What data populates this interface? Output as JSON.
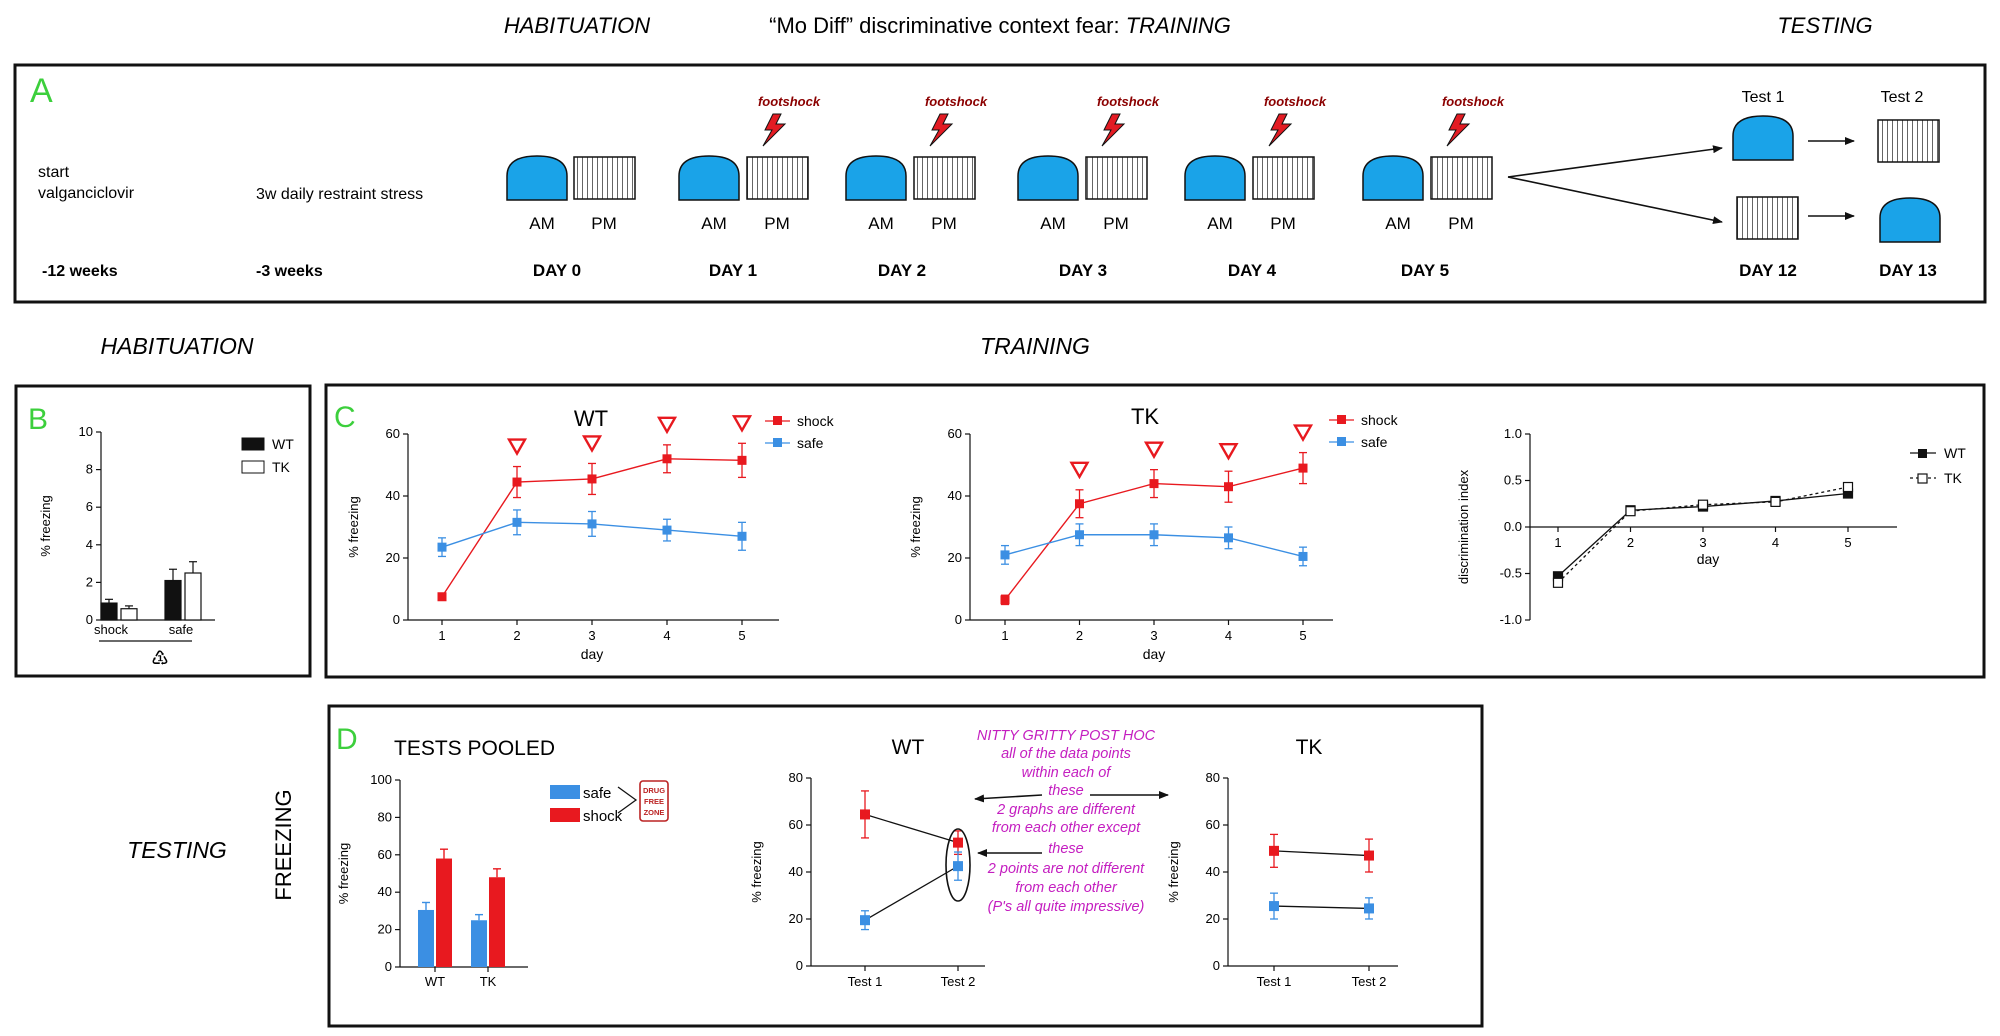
{
  "header": {
    "habituation": "HABITUATION",
    "training_prefix": "“Mo Diff” discriminative context fear: ",
    "training_word": "TRAINING",
    "testing": "TESTING"
  },
  "panel_a": {
    "letter": "A",
    "start_line1": "start",
    "start_line2": "valganciclovir",
    "stress": "3w daily restraint stress",
    "time_start": "-12 weeks",
    "time_stress": "-3 weeks",
    "footshock": "footshock",
    "am": "AM",
    "pm": "PM",
    "days": [
      "DAY 0",
      "DAY 1",
      "DAY 2",
      "DAY 3",
      "DAY 4",
      "DAY 5",
      "DAY 12",
      "DAY 13"
    ],
    "test1": "Test 1",
    "test2": "Test 2"
  },
  "section_labels": {
    "habituation": "HABITUATION",
    "training": "TRAINING",
    "testing": "TESTING",
    "freezing": "FREEZING"
  },
  "colors": {
    "shock": "#e8191f",
    "safe": "#3b8fe3",
    "context_blue": "#1aa3e8",
    "panel_letter": "#3ccf3c",
    "annotation": "#c41ec0",
    "bolt": "#e31b23",
    "footshock_text": "#8b0000"
  },
  "icons": {
    "bolt": "lightning-bolt-icon",
    "recycle": "recycle-icon",
    "stamp": "drug-free-zone-stamp-icon"
  },
  "panel_b": {
    "letter": "B",
    "ylabel": "% freezing",
    "legend": [
      "WT",
      "TK"
    ],
    "recycle_glyph": "♳",
    "chart_data": {
      "type": "bar",
      "categories": [
        "shock",
        "safe"
      ],
      "series": [
        {
          "name": "WT",
          "values": [
            0.9,
            2.1
          ],
          "errors": [
            0.2,
            0.6
          ]
        },
        {
          "name": "TK",
          "values": [
            0.6,
            2.5
          ],
          "errors": [
            0.15,
            0.6
          ]
        }
      ],
      "ylim": [
        0,
        10
      ],
      "yticks": [
        "0",
        "2",
        "4",
        "6",
        "8",
        "10"
      ],
      "ylabel": "% freezing"
    }
  },
  "panel_c": {
    "letter": "C",
    "wt": {
      "title": "WT",
      "legend": [
        "shock",
        "safe"
      ],
      "chart_data": {
        "type": "line",
        "x": [
          1,
          2,
          3,
          4,
          5
        ],
        "series": [
          {
            "name": "shock",
            "values": [
              7.5,
              44.5,
              45.5,
              52,
              51.5
            ],
            "errors": [
              1,
              5,
              5,
              4.5,
              5.5
            ]
          },
          {
            "name": "safe",
            "values": [
              23.5,
              31.5,
              31,
              29,
              27
            ],
            "errors": [
              3,
              4,
              4,
              3.5,
              4.5
            ]
          }
        ],
        "markers_x": [
          2,
          3,
          4,
          5
        ],
        "ylim": [
          0,
          60
        ],
        "yticks": [
          "0",
          "20",
          "40",
          "60"
        ],
        "xticks": [
          "1",
          "2",
          "3",
          "4",
          "5"
        ],
        "xlabel": "day",
        "ylabel": "% freezing"
      }
    },
    "tk": {
      "title": "TK",
      "legend": [
        "shock",
        "safe"
      ],
      "chart_data": {
        "type": "line",
        "x": [
          1,
          2,
          3,
          4,
          5
        ],
        "series": [
          {
            "name": "shock",
            "values": [
              6.5,
              37.5,
              44,
              43,
              49
            ],
            "errors": [
              1.5,
              4.5,
              4.5,
              5,
              5
            ]
          },
          {
            "name": "safe",
            "values": [
              21,
              27.5,
              27.5,
              26.5,
              20.5
            ],
            "errors": [
              3,
              3.5,
              3.5,
              3.5,
              3
            ]
          }
        ],
        "markers_x": [
          2,
          3,
          4,
          5
        ],
        "ylim": [
          0,
          60
        ],
        "yticks": [
          "0",
          "20",
          "40",
          "60"
        ],
        "xticks": [
          "1",
          "2",
          "3",
          "4",
          "5"
        ],
        "xlabel": "day",
        "ylabel": "% freezing"
      }
    },
    "di": {
      "legend": [
        "WT",
        "TK"
      ],
      "chart_data": {
        "type": "line",
        "x": [
          1,
          2,
          3,
          4,
          5
        ],
        "series": [
          {
            "name": "WT",
            "values": [
              -0.53,
              0.18,
              0.22,
              0.28,
              0.36
            ]
          },
          {
            "name": "TK",
            "values": [
              -0.6,
              0.17,
              0.24,
              0.27,
              0.43
            ]
          }
        ],
        "ylim": [
          -1.0,
          1.0
        ],
        "yticks": [
          "1.0",
          "0.5",
          "0.0",
          "-0.5",
          "-1.0"
        ],
        "xticks": [
          "1",
          "2",
          "3",
          "4",
          "5"
        ],
        "xlabel": "day",
        "ylabel": "discrimination index"
      }
    }
  },
  "panel_d": {
    "letter": "D",
    "pooled_title": "TESTS POOLED",
    "legend": [
      "safe",
      "shock"
    ],
    "stamp_lines": [
      "DRUG",
      "FREE",
      "ZONE"
    ],
    "annotation_lines": [
      "NITTY GRITTY POST HOC",
      "all of the data points",
      "within each of",
      "these",
      "2 graphs are different",
      "from each other except",
      "these",
      "2 points are not different",
      "from each other",
      "(P's all quite impressive)"
    ],
    "pooled": {
      "chart_data": {
        "type": "bar",
        "categories": [
          "WT",
          "TK"
        ],
        "series": [
          {
            "name": "safe",
            "values": [
              30.5,
              25
            ],
            "errors": [
              4,
              3
            ]
          },
          {
            "name": "shock",
            "values": [
              58,
              48
            ],
            "errors": [
              5,
              4.5
            ]
          }
        ],
        "ylim": [
          0,
          100
        ],
        "yticks": [
          "0",
          "20",
          "40",
          "60",
          "80",
          "100"
        ],
        "ylabel": "% freezing"
      }
    },
    "wt": {
      "title": "WT",
      "chart_data": {
        "type": "line",
        "categories": [
          "Test 1",
          "Test 2"
        ],
        "series": [
          {
            "name": "shock",
            "values": [
              64.5,
              52.5
            ],
            "errors": [
              10,
              5
            ]
          },
          {
            "name": "safe",
            "values": [
              19.5,
              42.5
            ],
            "errors": [
              4,
              6
            ]
          }
        ],
        "ylim": [
          0,
          80
        ],
        "yticks": [
          "0",
          "20",
          "40",
          "60",
          "80"
        ],
        "ylabel": "% freezing"
      }
    },
    "tk": {
      "title": "TK",
      "chart_data": {
        "type": "line",
        "categories": [
          "Test 1",
          "Test 2"
        ],
        "series": [
          {
            "name": "shock",
            "values": [
              49,
              47
            ],
            "errors": [
              7,
              7
            ]
          },
          {
            "name": "safe",
            "values": [
              25.5,
              24.5
            ],
            "errors": [
              5.5,
              4.5
            ]
          }
        ],
        "ylim": [
          0,
          80
        ],
        "yticks": [
          "0",
          "20",
          "40",
          "60",
          "80"
        ],
        "ylabel": "% freezing"
      }
    }
  }
}
